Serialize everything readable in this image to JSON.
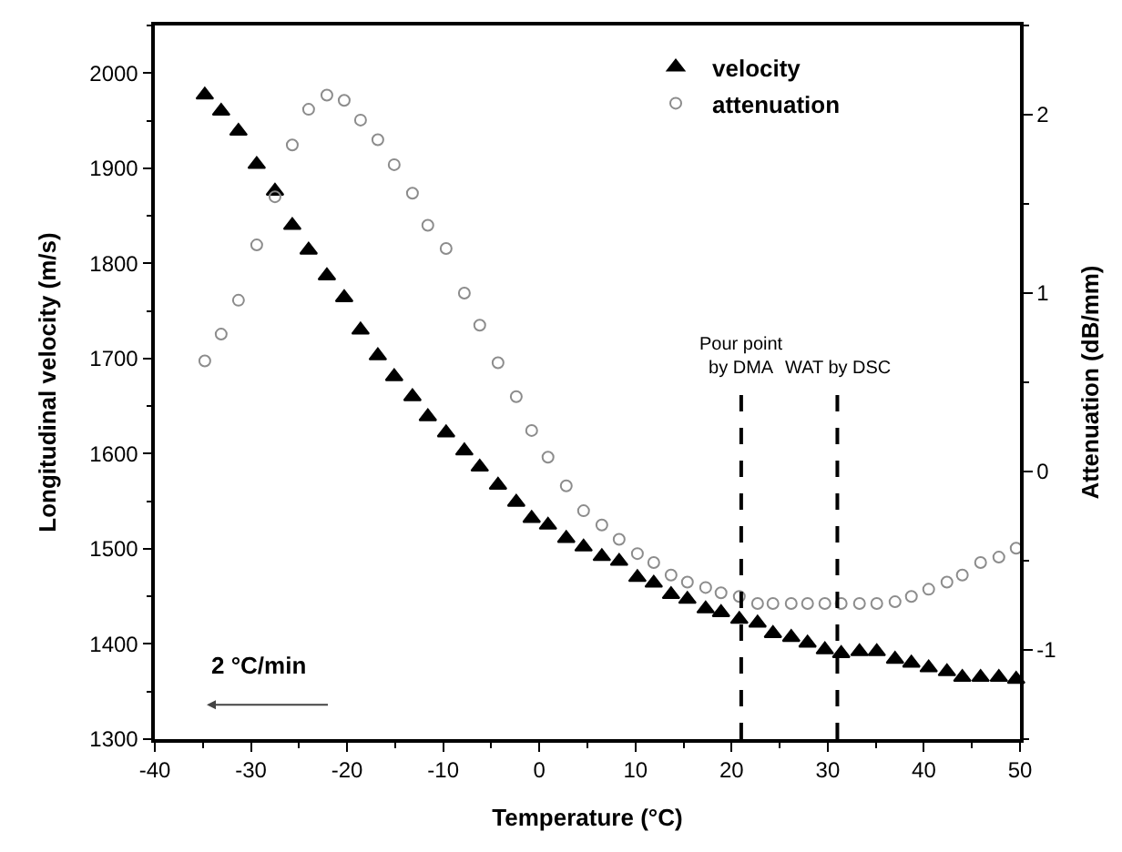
{
  "chart_data": {
    "type": "scatter",
    "xlabel": "Temperature (°C)",
    "ylabel": "Longitudinal velocity (m/s)",
    "y2label": "Attenuation (dB/mm)",
    "x": [
      -34.8,
      -33.1,
      -31.3,
      -29.4,
      -27.5,
      -25.7,
      -24.0,
      -22.1,
      -20.3,
      -18.6,
      -16.8,
      -15.1,
      -13.2,
      -11.6,
      -9.7,
      -7.8,
      -6.2,
      -4.3,
      -2.4,
      -0.8,
      0.9,
      2.8,
      4.6,
      6.5,
      8.3,
      10.2,
      11.9,
      13.7,
      15.4,
      17.3,
      18.9,
      20.8,
      22.7,
      24.3,
      26.2,
      27.9,
      29.7,
      31.4,
      33.3,
      35.1,
      37.0,
      38.7,
      40.5,
      42.4,
      44.0,
      45.9,
      47.8,
      49.6
    ],
    "series": [
      {
        "name": "velocity",
        "color": "#000000",
        "marker": "triangle",
        "values": [
          1977,
          1960,
          1939,
          1904,
          1876,
          1840,
          1814,
          1787,
          1764,
          1730,
          1703,
          1681,
          1660,
          1639,
          1622,
          1603,
          1586,
          1567,
          1549,
          1532,
          1525,
          1511,
          1502,
          1492,
          1487,
          1470,
          1464,
          1452,
          1447,
          1437,
          1433,
          1426,
          1422,
          1411,
          1407,
          1401,
          1394,
          1390,
          1392,
          1392,
          1384,
          1380,
          1375,
          1371,
          1365,
          1365,
          1365,
          1363
        ]
      },
      {
        "name": "attenuation",
        "color": "#8c8c8c",
        "marker": "circle",
        "axis": "y2",
        "values": [
          0.62,
          0.77,
          0.96,
          1.27,
          1.54,
          1.83,
          2.03,
          2.11,
          2.08,
          1.97,
          1.86,
          1.72,
          1.56,
          1.38,
          1.25,
          1.0,
          0.82,
          0.61,
          0.42,
          0.23,
          0.08,
          -0.08,
          -0.22,
          -0.3,
          -0.38,
          -0.46,
          -0.51,
          -0.58,
          -0.62,
          -0.65,
          -0.68,
          -0.7,
          -0.74,
          -0.74,
          -0.74,
          -0.74,
          -0.74,
          -0.74,
          -0.74,
          -0.74,
          -0.73,
          -0.7,
          -0.66,
          -0.62,
          -0.58,
          -0.51,
          -0.48,
          -0.43
        ]
      }
    ],
    "xlim": [
      -40,
      50
    ],
    "xticks": [
      -40,
      -30,
      -20,
      -10,
      0,
      10,
      20,
      30,
      40,
      50
    ],
    "ylim": [
      1300,
      2050
    ],
    "yticks": [
      1300,
      1400,
      1500,
      1600,
      1700,
      1800,
      1900,
      2000
    ],
    "y2lim": [
      -1.5,
      2.5
    ],
    "y2ticks": [
      -1,
      0,
      1,
      2
    ],
    "ref_lines": [
      {
        "axis": "x",
        "value": 21,
        "label": "Pour point\nby DMA",
        "line_style": "dashed",
        "color": "#000000"
      },
      {
        "axis": "x",
        "value": 31,
        "label": "WAT by DSC",
        "line_style": "dashed",
        "color": "#000000"
      }
    ],
    "annotations": [
      "2 °C/min"
    ],
    "legend": "top right"
  }
}
